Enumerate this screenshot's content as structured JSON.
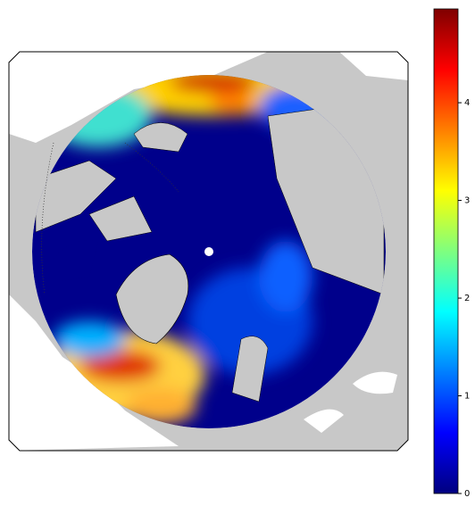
{
  "colorbar": {
    "colormap": "jet",
    "lim": [
      0,
      4.96
    ],
    "ticks": [
      0,
      1,
      2,
      3,
      4
    ]
  }
}
